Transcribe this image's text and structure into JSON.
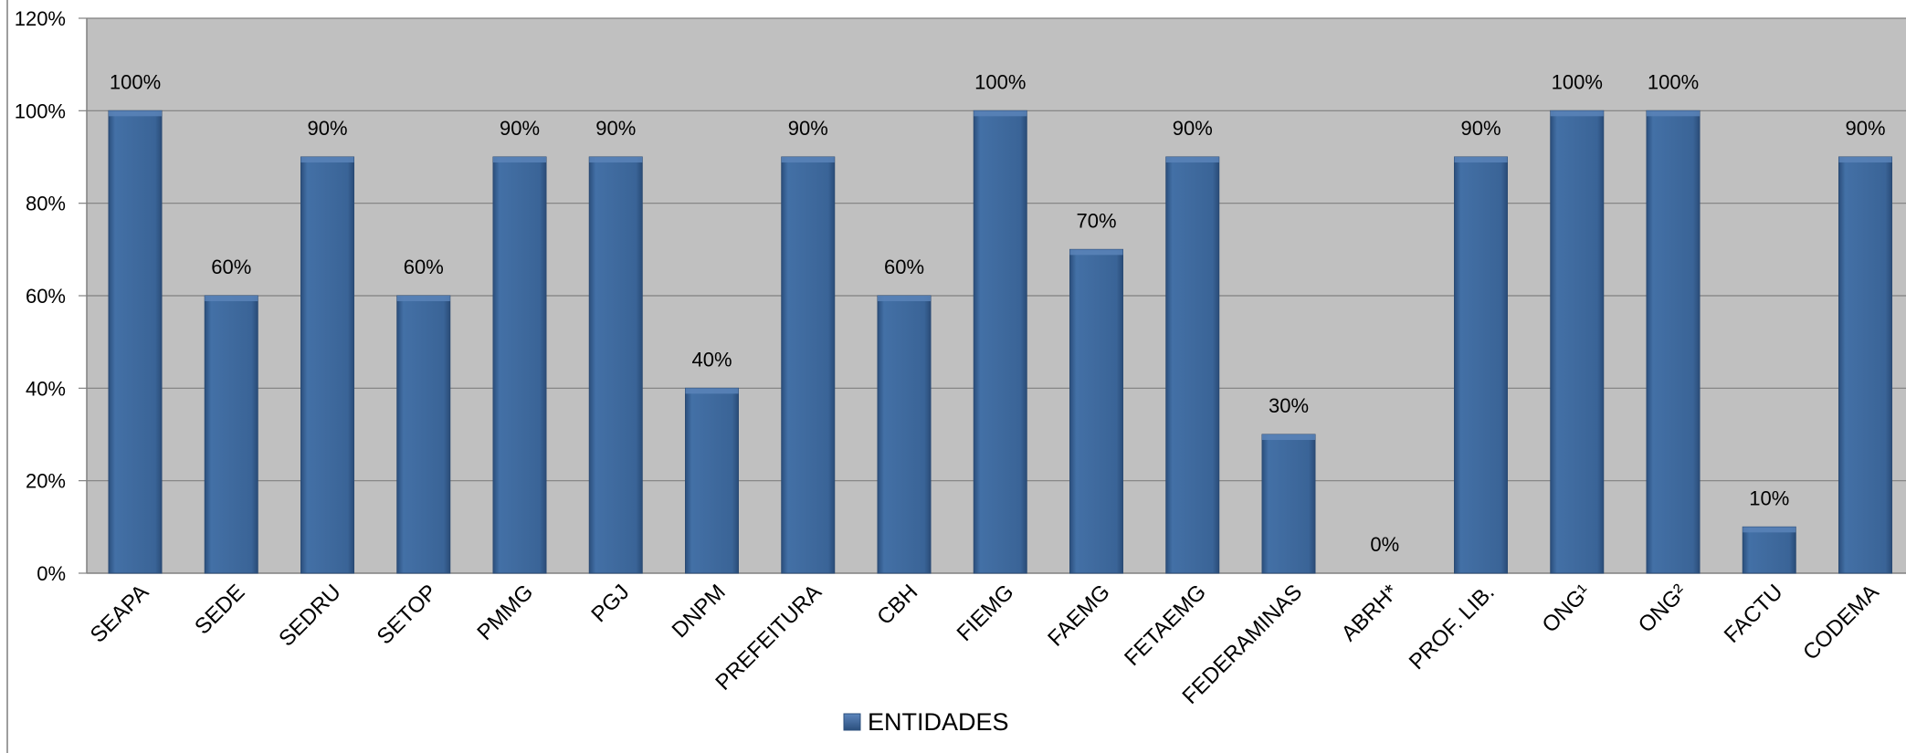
{
  "chart_data": {
    "type": "bar",
    "categories": [
      "SEAPA",
      "SEDE",
      "SEDRU",
      "SETOP",
      "PMMG",
      "PGJ",
      "DNPM",
      "PREFEITURA",
      "CBH",
      "FIEMG",
      "FAEMG",
      "FETAEMG",
      "FEDERAMINAS",
      "ABRH*",
      "PROF. LIB.",
      "ONG¹",
      "ONG²",
      "FACTU",
      "CODEMA"
    ],
    "series": [
      {
        "name": "ENTIDADES",
        "values": [
          100,
          60,
          90,
          60,
          90,
          90,
          40,
          90,
          60,
          100,
          70,
          90,
          30,
          0,
          90,
          100,
          100,
          10,
          90
        ],
        "data_labels": [
          "100%",
          "60%",
          "90%",
          "60%",
          "90%",
          "90%",
          "40%",
          "90%",
          "60%",
          "100%",
          "70%",
          "90%",
          "30%",
          "0%",
          "90%",
          "100%",
          "100%",
          "10%",
          "90%"
        ],
        "color": "#3c6699"
      }
    ],
    "ylim": [
      0,
      120
    ],
    "yticks": [
      0,
      20,
      40,
      60,
      80,
      100,
      120
    ],
    "ytick_labels": [
      "0%",
      "20%",
      "40%",
      "60%",
      "80%",
      "100%",
      "120%"
    ],
    "title": "",
    "xlabel": "",
    "ylabel": "",
    "grid": true,
    "legend_position": "bottom",
    "plot_background": "#c0c0c0"
  }
}
